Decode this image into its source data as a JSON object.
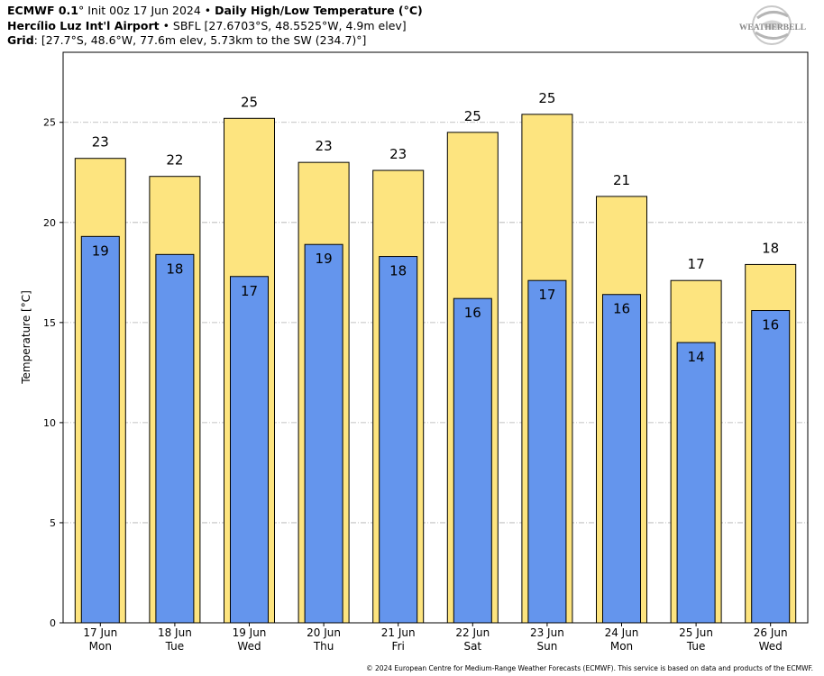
{
  "header": {
    "line1_model": "ECMWF 0.1",
    "line1_init": "° Init 00z 17 Jun 2024",
    "line1_sep": " • ",
    "line1_title": "Daily High/Low Temperature (°C)",
    "line2_station": "Hercílio Luz Int'l Airport",
    "line2_sep": " • ",
    "line2_details": "SBFL [27.6703°S, 48.5525°W, 4.9m elev]",
    "line3_label": "Grid",
    "line3_details": ": [27.7°S, 48.6°W, 77.6m elev, 5.73km to the SW (234.7)°]"
  },
  "logo": {
    "text": "WEATHERBELL",
    "icon": "weatherbell-swirl-logo"
  },
  "copyright": "© 2024 European Centre for Medium-Range Weather Forecasts (ECMWF). This service is based on data and products of the ECMWF.",
  "chart_data": {
    "type": "bar",
    "ylabel": "Temperature [°C]",
    "ylim": [
      0,
      28.5
    ],
    "yticks": [
      0,
      5,
      10,
      15,
      20,
      25
    ],
    "grid": "horizontal dash-dot",
    "categories": [
      [
        "17 Jun",
        "Mon"
      ],
      [
        "18 Jun",
        "Tue"
      ],
      [
        "19 Jun",
        "Wed"
      ],
      [
        "20 Jun",
        "Thu"
      ],
      [
        "21 Jun",
        "Fri"
      ],
      [
        "22 Jun",
        "Sat"
      ],
      [
        "23 Jun",
        "Sun"
      ],
      [
        "24 Jun",
        "Mon"
      ],
      [
        "25 Jun",
        "Tue"
      ],
      [
        "26 Jun",
        "Wed"
      ]
    ],
    "series": [
      {
        "key": "high",
        "color": "#fde47f",
        "values": [
          23.2,
          22.3,
          25.2,
          23.0,
          22.6,
          24.5,
          25.4,
          21.3,
          17.1,
          17.9
        ],
        "labels": [
          "23",
          "22",
          "25",
          "23",
          "23",
          "25",
          "25",
          "21",
          "17",
          "18"
        ]
      },
      {
        "key": "low",
        "color": "#6495ed",
        "values": [
          19.3,
          18.4,
          17.3,
          18.9,
          18.3,
          16.2,
          17.1,
          16.4,
          14.0,
          15.6
        ],
        "labels": [
          "19",
          "18",
          "17",
          "19",
          "18",
          "16",
          "17",
          "16",
          "14",
          "16"
        ]
      }
    ]
  }
}
